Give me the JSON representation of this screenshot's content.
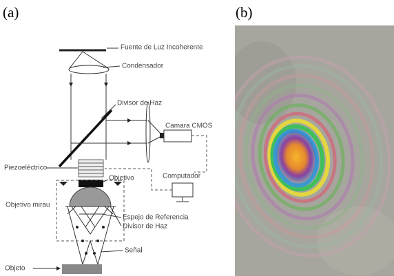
{
  "panels": {
    "a": {
      "label": "(a)",
      "labels": {
        "source": "Fuente de Luz Incoherente",
        "condenser": "Condensador",
        "splitter_top": "Divisor de Haz",
        "camera": "Camara CMOS",
        "piezo": "Piezoeléctrico",
        "objective": "Objetivo",
        "computer": "Computador",
        "mirau": "Objetivo mirau",
        "mirror": "Espejo de Referencia",
        "splitter_bottom": "Divisor de Haz",
        "signal": "Señal",
        "object": "Objeto"
      }
    },
    "b": {
      "label": "(b)"
    }
  }
}
